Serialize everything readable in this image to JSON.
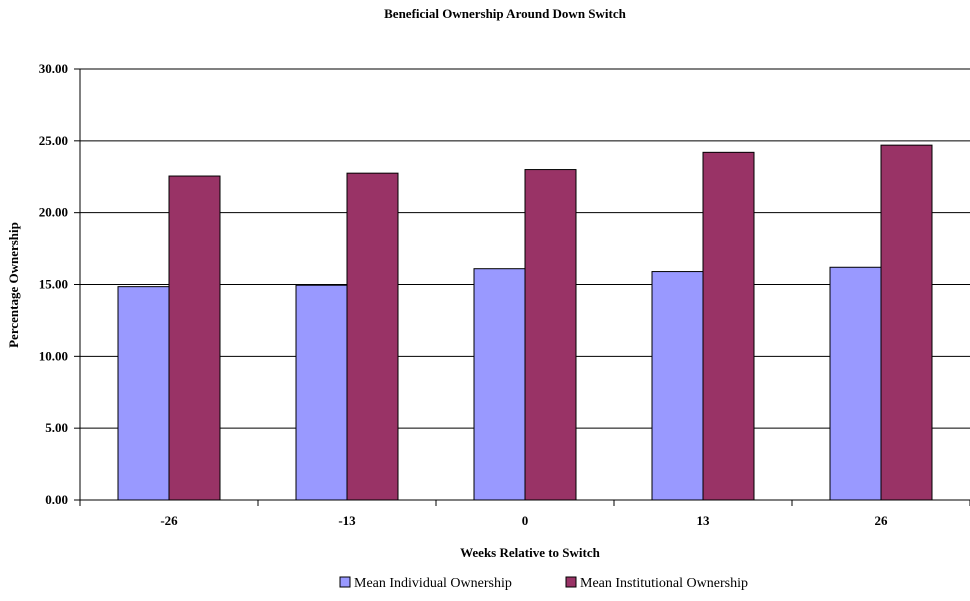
{
  "chart_data": {
    "type": "bar",
    "title": "Beneficial Ownership Around Down Switch",
    "xlabel": "Weeks Relative to Switch",
    "ylabel": "Percentage Ownership",
    "categories": [
      "-26",
      "-13",
      "0",
      "13",
      "26"
    ],
    "y_ticks": [
      "0.00",
      "5.00",
      "10.00",
      "15.00",
      "20.00",
      "25.00",
      "30.00"
    ],
    "ylim": [
      0,
      30
    ],
    "grid": true,
    "legend_position": "bottom",
    "series": [
      {
        "name": "Mean Individual Ownership",
        "color": "#9999ff",
        "values": [
          14.85,
          14.95,
          16.1,
          15.9,
          16.2
        ]
      },
      {
        "name": "Mean Institutional Ownership",
        "color": "#993366",
        "values": [
          22.55,
          22.75,
          23.0,
          24.2,
          24.7
        ]
      }
    ]
  }
}
